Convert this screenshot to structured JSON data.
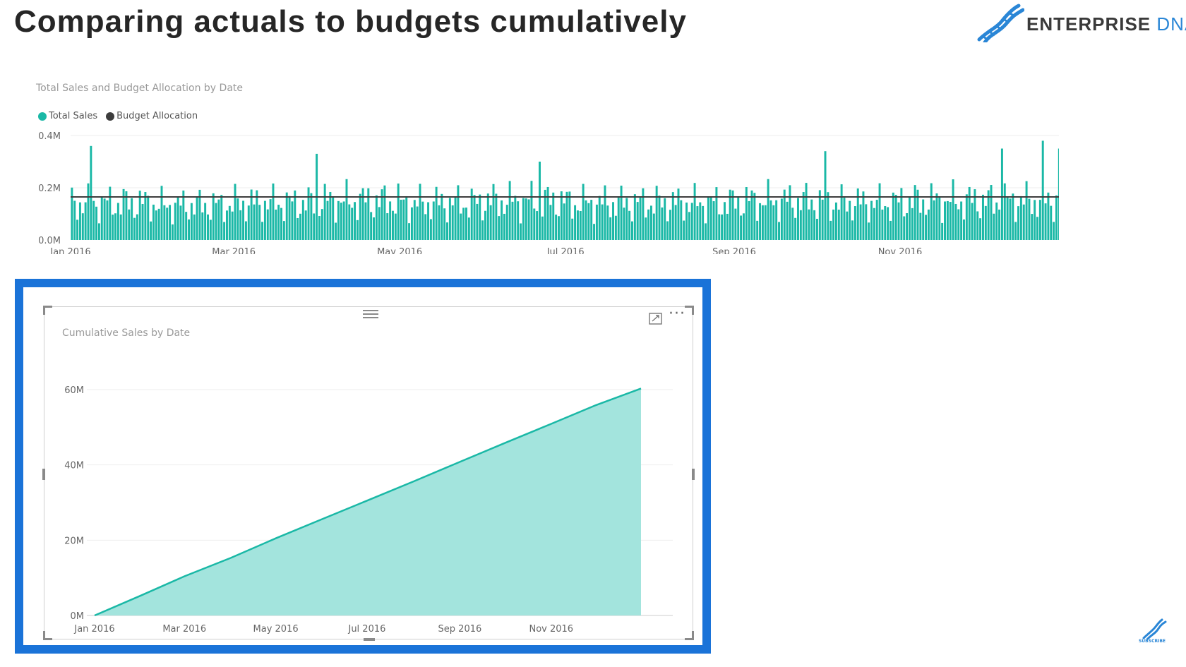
{
  "page": {
    "title": "Comparing actuals to budgets cumulatively"
  },
  "logo": {
    "word1": "ENTERPRISE",
    "word2": "DNA",
    "icon": "dna-helix-icon",
    "color": "#2a86d6"
  },
  "top_chart": {
    "title": "Total Sales and Budget Allocation by Date",
    "legend": [
      {
        "label": "Total Sales",
        "color": "#1ab8a6"
      },
      {
        "label": "Budget Allocation",
        "color": "#3d3d3d"
      }
    ]
  },
  "bottom_chart": {
    "title": "Cumulative Sales by Date",
    "focus_mode_icon": "focus-mode-icon",
    "more_options_icon": "more-options-icon",
    "more_options_glyph": "···"
  },
  "subscribe_badge": {
    "label": "SUBSCRIBE",
    "icon": "dna-helix-icon"
  },
  "chart_data": [
    {
      "type": "bar",
      "title": "Total Sales and Budget Allocation by Date",
      "series": [
        {
          "name": "Total Sales",
          "type": "bar",
          "color": "#1ab8a6",
          "x_range": [
            "2016-01-01",
            "2016-12-31"
          ],
          "values_monthly_typical": [
            0.17,
            0.16,
            0.17,
            0.18,
            0.17,
            0.18,
            0.17,
            0.17,
            0.18,
            0.17,
            0.18,
            0.18
          ],
          "peaks": [
            {
              "x": "2016-01-08",
              "y": 0.36
            },
            {
              "x": "2016-03-31",
              "y": 0.33
            },
            {
              "x": "2016-06-21",
              "y": 0.3
            },
            {
              "x": "2016-10-04",
              "y": 0.34
            },
            {
              "x": "2016-12-08",
              "y": 0.35
            },
            {
              "x": "2016-12-23",
              "y": 0.38
            },
            {
              "x": "2016-12-29",
              "y": 0.35
            }
          ]
        },
        {
          "name": "Budget Allocation",
          "type": "line",
          "color": "#3d3d3d",
          "value": 0.165
        }
      ],
      "x_ticks": [
        "Jan 2016",
        "Mar 2016",
        "May 2016",
        "Jul 2016",
        "Sep 2016",
        "Nov 2016"
      ],
      "y_ticks": [
        "0.0M",
        "0.2M",
        "0.4M"
      ],
      "ylim": [
        0,
        0.4
      ],
      "y_unit": "M",
      "legend_position": "top-left",
      "grid": true
    },
    {
      "type": "area",
      "title": "Cumulative Sales by Date",
      "color": "#1ab8a6",
      "fill": "#a3e4dd",
      "x": [
        "2016-01-01",
        "2016-02-01",
        "2016-03-01",
        "2016-04-01",
        "2016-05-01",
        "2016-06-01",
        "2016-07-01",
        "2016-08-01",
        "2016-09-01",
        "2016-10-01",
        "2016-11-01",
        "2016-12-01",
        "2016-12-31"
      ],
      "y": [
        0,
        5.3,
        10.4,
        15.3,
        20.5,
        25.6,
        30.5,
        35.6,
        40.8,
        45.8,
        50.9,
        55.9,
        60.3
      ],
      "x_ticks": [
        "Jan 2016",
        "Mar 2016",
        "May 2016",
        "Jul 2016",
        "Sep 2016",
        "Nov 2016"
      ],
      "y_ticks": [
        "0M",
        "20M",
        "40M",
        "60M"
      ],
      "ylim": [
        0,
        60
      ],
      "y_unit": "M",
      "grid": true
    }
  ]
}
